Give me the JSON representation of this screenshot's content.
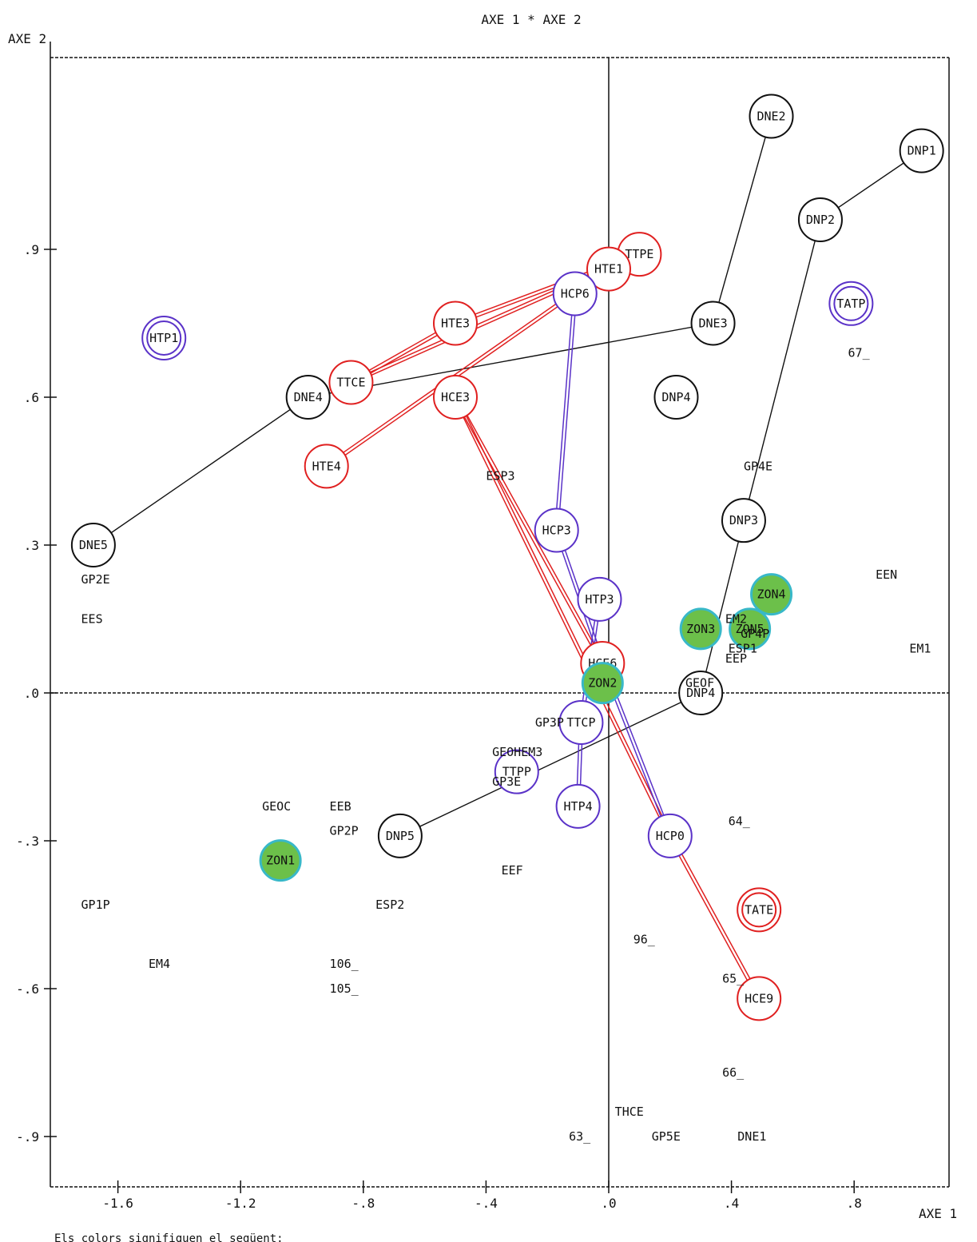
{
  "chart_data": {
    "type": "scatter",
    "title": "AXE 1  *  AXE 2",
    "xlabel": "AXE 1",
    "ylabel": "AXE 2",
    "footnote": "Els colors signifiquen el següent:",
    "xlim": [
      -1.75,
      1.07
    ],
    "ylim": [
      -0.9,
      1.2
    ],
    "x_ticks": [
      "-1.6",
      "-1.2",
      "-.8",
      "-.4",
      ".0",
      ".4",
      ".8"
    ],
    "x_tick_values": [
      -1.6,
      -1.2,
      -0.8,
      -0.4,
      0.0,
      0.4,
      0.8
    ],
    "y_ticks": [
      ".9",
      ".6",
      ".3",
      ".0",
      "-.3",
      "-.6",
      "-.9"
    ],
    "y_tick_values": [
      0.9,
      0.6,
      0.3,
      0.0,
      -0.3,
      -0.6,
      -0.9
    ],
    "colors": {
      "black": "#111111",
      "red": "#e02020",
      "blue": "#5a32c8",
      "zone_fill": "#6cc04a",
      "zone_ring": "#38b8c8"
    },
    "points": [
      {
        "label": "DNE2",
        "x": 0.53,
        "y": 1.17,
        "ring": "black"
      },
      {
        "label": "DNP1",
        "x": 1.02,
        "y": 1.1,
        "ring": "black"
      },
      {
        "label": "DNP2",
        "x": 0.69,
        "y": 0.96,
        "ring": "black"
      },
      {
        "label": "TTPE",
        "x": 0.1,
        "y": 0.89,
        "ring": "red"
      },
      {
        "label": "HTE1",
        "x": 0.0,
        "y": 0.86,
        "ring": "red"
      },
      {
        "label": "HCP6",
        "x": -0.11,
        "y": 0.81,
        "ring": "blue"
      },
      {
        "label": "TATP",
        "x": 0.79,
        "y": 0.79,
        "ring": "blue",
        "double": true
      },
      {
        "label": "HTE3",
        "x": -0.5,
        "y": 0.75,
        "ring": "red"
      },
      {
        "label": "DNE3",
        "x": 0.34,
        "y": 0.75,
        "ring": "black"
      },
      {
        "label": "HTP1",
        "x": -1.45,
        "y": 0.72,
        "ring": "blue",
        "double": true
      },
      {
        "label": "TTCE",
        "x": -0.84,
        "y": 0.63,
        "ring": "red"
      },
      {
        "label": "DNE4",
        "x": -0.98,
        "y": 0.6,
        "ring": "black"
      },
      {
        "label": "HCE3",
        "x": -0.5,
        "y": 0.6,
        "ring": "red"
      },
      {
        "label": "DNP4",
        "x": 0.22,
        "y": 0.6,
        "ring": "black"
      },
      {
        "label": "HTE4",
        "x": -0.92,
        "y": 0.46,
        "ring": "red"
      },
      {
        "label": "DNP3",
        "x": 0.44,
        "y": 0.35,
        "ring": "black"
      },
      {
        "label": "DNE5",
        "x": -1.68,
        "y": 0.3,
        "ring": "black"
      },
      {
        "label": "HCP3",
        "x": -0.17,
        "y": 0.33,
        "ring": "blue"
      },
      {
        "label": "ZON4",
        "x": 0.53,
        "y": 0.2,
        "ring": "zone"
      },
      {
        "label": "HTP3",
        "x": -0.03,
        "y": 0.19,
        "ring": "blue"
      },
      {
        "label": "ZON3",
        "x": 0.3,
        "y": 0.13,
        "ring": "zone"
      },
      {
        "label": "ZON5",
        "x": 0.46,
        "y": 0.13,
        "ring": "zone"
      },
      {
        "label": "HCE6",
        "x": -0.02,
        "y": 0.06,
        "ring": "red"
      },
      {
        "label": "ZON2",
        "x": -0.02,
        "y": 0.02,
        "ring": "zone"
      },
      {
        "label": "DNP4",
        "x": 0.3,
        "y": 0.0,
        "ring": "black"
      },
      {
        "label": "TTCP",
        "x": -0.09,
        "y": -0.06,
        "ring": "blue"
      },
      {
        "label": "TTPP",
        "x": -0.3,
        "y": -0.16,
        "ring": "blue"
      },
      {
        "label": "HTP4",
        "x": -0.1,
        "y": -0.23,
        "ring": "blue"
      },
      {
        "label": "DNP5",
        "x": -0.68,
        "y": -0.29,
        "ring": "black"
      },
      {
        "label": "HCP0",
        "x": 0.2,
        "y": -0.29,
        "ring": "blue"
      },
      {
        "label": "ZON1",
        "x": -1.07,
        "y": -0.34,
        "ring": "zone"
      },
      {
        "label": "TATE",
        "x": 0.49,
        "y": -0.44,
        "ring": "red",
        "double": true
      },
      {
        "label": "HCE9",
        "x": 0.49,
        "y": -0.62,
        "ring": "red"
      }
    ],
    "text_labels": [
      {
        "text": "67_",
        "x": 0.78,
        "y": 0.69
      },
      {
        "text": "ESP3",
        "x": -0.4,
        "y": 0.44
      },
      {
        "text": "GP4E",
        "x": 0.44,
        "y": 0.46
      },
      {
        "text": "GP2E",
        "x": -1.72,
        "y": 0.23
      },
      {
        "text": "EES",
        "x": -1.72,
        "y": 0.15
      },
      {
        "text": "EEN",
        "x": 0.87,
        "y": 0.24
      },
      {
        "text": "EM2",
        "x": 0.38,
        "y": 0.15
      },
      {
        "text": "GP4P",
        "x": 0.43,
        "y": 0.12
      },
      {
        "text": "ESP1",
        "x": 0.39,
        "y": 0.09
      },
      {
        "text": "EEP",
        "x": 0.38,
        "y": 0.07
      },
      {
        "text": "EM1",
        "x": 0.98,
        "y": 0.09
      },
      {
        "text": "GEOF",
        "x": 0.25,
        "y": 0.02
      },
      {
        "text": "GP3P",
        "x": -0.24,
        "y": -0.06
      },
      {
        "text": "GEOHEM3",
        "x": -0.38,
        "y": -0.12
      },
      {
        "text": "GP3E",
        "x": -0.38,
        "y": -0.18
      },
      {
        "text": "GEOC",
        "x": -1.13,
        "y": -0.23
      },
      {
        "text": "EEB",
        "x": -0.91,
        "y": -0.23
      },
      {
        "text": "GP2P",
        "x": -0.91,
        "y": -0.28
      },
      {
        "text": "64_",
        "x": 0.39,
        "y": -0.26
      },
      {
        "text": "EEF",
        "x": -0.35,
        "y": -0.36
      },
      {
        "text": "GP1P",
        "x": -1.72,
        "y": -0.43
      },
      {
        "text": "ESP2",
        "x": -0.76,
        "y": -0.43
      },
      {
        "text": "96_",
        "x": 0.08,
        "y": -0.5
      },
      {
        "text": "EM4",
        "x": -1.5,
        "y": -0.55
      },
      {
        "text": "106_",
        "x": -0.91,
        "y": -0.55
      },
      {
        "text": "105_",
        "x": -0.91,
        "y": -0.6
      },
      {
        "text": "65_",
        "x": 0.37,
        "y": -0.58
      },
      {
        "text": "66_",
        "x": 0.37,
        "y": -0.77
      },
      {
        "text": "THCE",
        "x": 0.02,
        "y": -0.85
      },
      {
        "text": "63_",
        "x": -0.13,
        "y": -0.9
      },
      {
        "text": "GP5E",
        "x": 0.14,
        "y": -0.9
      },
      {
        "text": "DNE1",
        "x": 0.42,
        "y": -0.9
      }
    ],
    "segments": [
      {
        "color": "black",
        "from": [
          0.53,
          1.17
        ],
        "to": [
          0.34,
          0.75
        ]
      },
      {
        "color": "black",
        "from": [
          1.02,
          1.1
        ],
        "to": [
          0.69,
          0.96
        ]
      },
      {
        "color": "black",
        "from": [
          0.69,
          0.96
        ],
        "to": [
          0.44,
          0.35
        ]
      },
      {
        "color": "black",
        "from": [
          0.34,
          0.75
        ],
        "to": [
          -0.98,
          0.6
        ]
      },
      {
        "color": "black",
        "from": [
          -0.98,
          0.6
        ],
        "to": [
          -1.68,
          0.3
        ]
      },
      {
        "color": "black",
        "from": [
          0.44,
          0.35
        ],
        "to": [
          0.3,
          0.0
        ]
      },
      {
        "color": "black",
        "from": [
          0.3,
          0.0
        ],
        "to": [
          -0.68,
          -0.29
        ]
      },
      {
        "color": "red",
        "from": [
          0.1,
          0.89
        ],
        "to": [
          -0.84,
          0.63
        ]
      },
      {
        "color": "red",
        "from": [
          0.1,
          0.89
        ],
        "to": [
          -0.5,
          0.75
        ]
      },
      {
        "color": "red",
        "from": [
          -0.5,
          0.75
        ],
        "to": [
          -0.84,
          0.63
        ]
      },
      {
        "color": "red",
        "from": [
          0.0,
          0.86
        ],
        "to": [
          -0.92,
          0.46
        ]
      },
      {
        "color": "red",
        "from": [
          -0.5,
          0.6
        ],
        "to": [
          -0.02,
          0.06
        ]
      },
      {
        "color": "red",
        "from": [
          -0.5,
          0.6
        ],
        "to": [
          0.2,
          -0.29
        ]
      },
      {
        "color": "red",
        "from": [
          0.2,
          -0.29
        ],
        "to": [
          0.49,
          -0.62
        ]
      },
      {
        "color": "blue",
        "from": [
          -0.11,
          0.81
        ],
        "to": [
          -0.17,
          0.33
        ]
      },
      {
        "color": "blue",
        "from": [
          -0.17,
          0.33
        ],
        "to": [
          -0.02,
          0.06
        ]
      },
      {
        "color": "blue",
        "from": [
          -0.02,
          0.06
        ],
        "to": [
          0.2,
          -0.29
        ]
      },
      {
        "color": "blue",
        "from": [
          -0.03,
          0.19
        ],
        "to": [
          -0.09,
          -0.06
        ]
      },
      {
        "color": "blue",
        "from": [
          -0.09,
          -0.06
        ],
        "to": [
          -0.1,
          -0.23
        ]
      }
    ]
  }
}
